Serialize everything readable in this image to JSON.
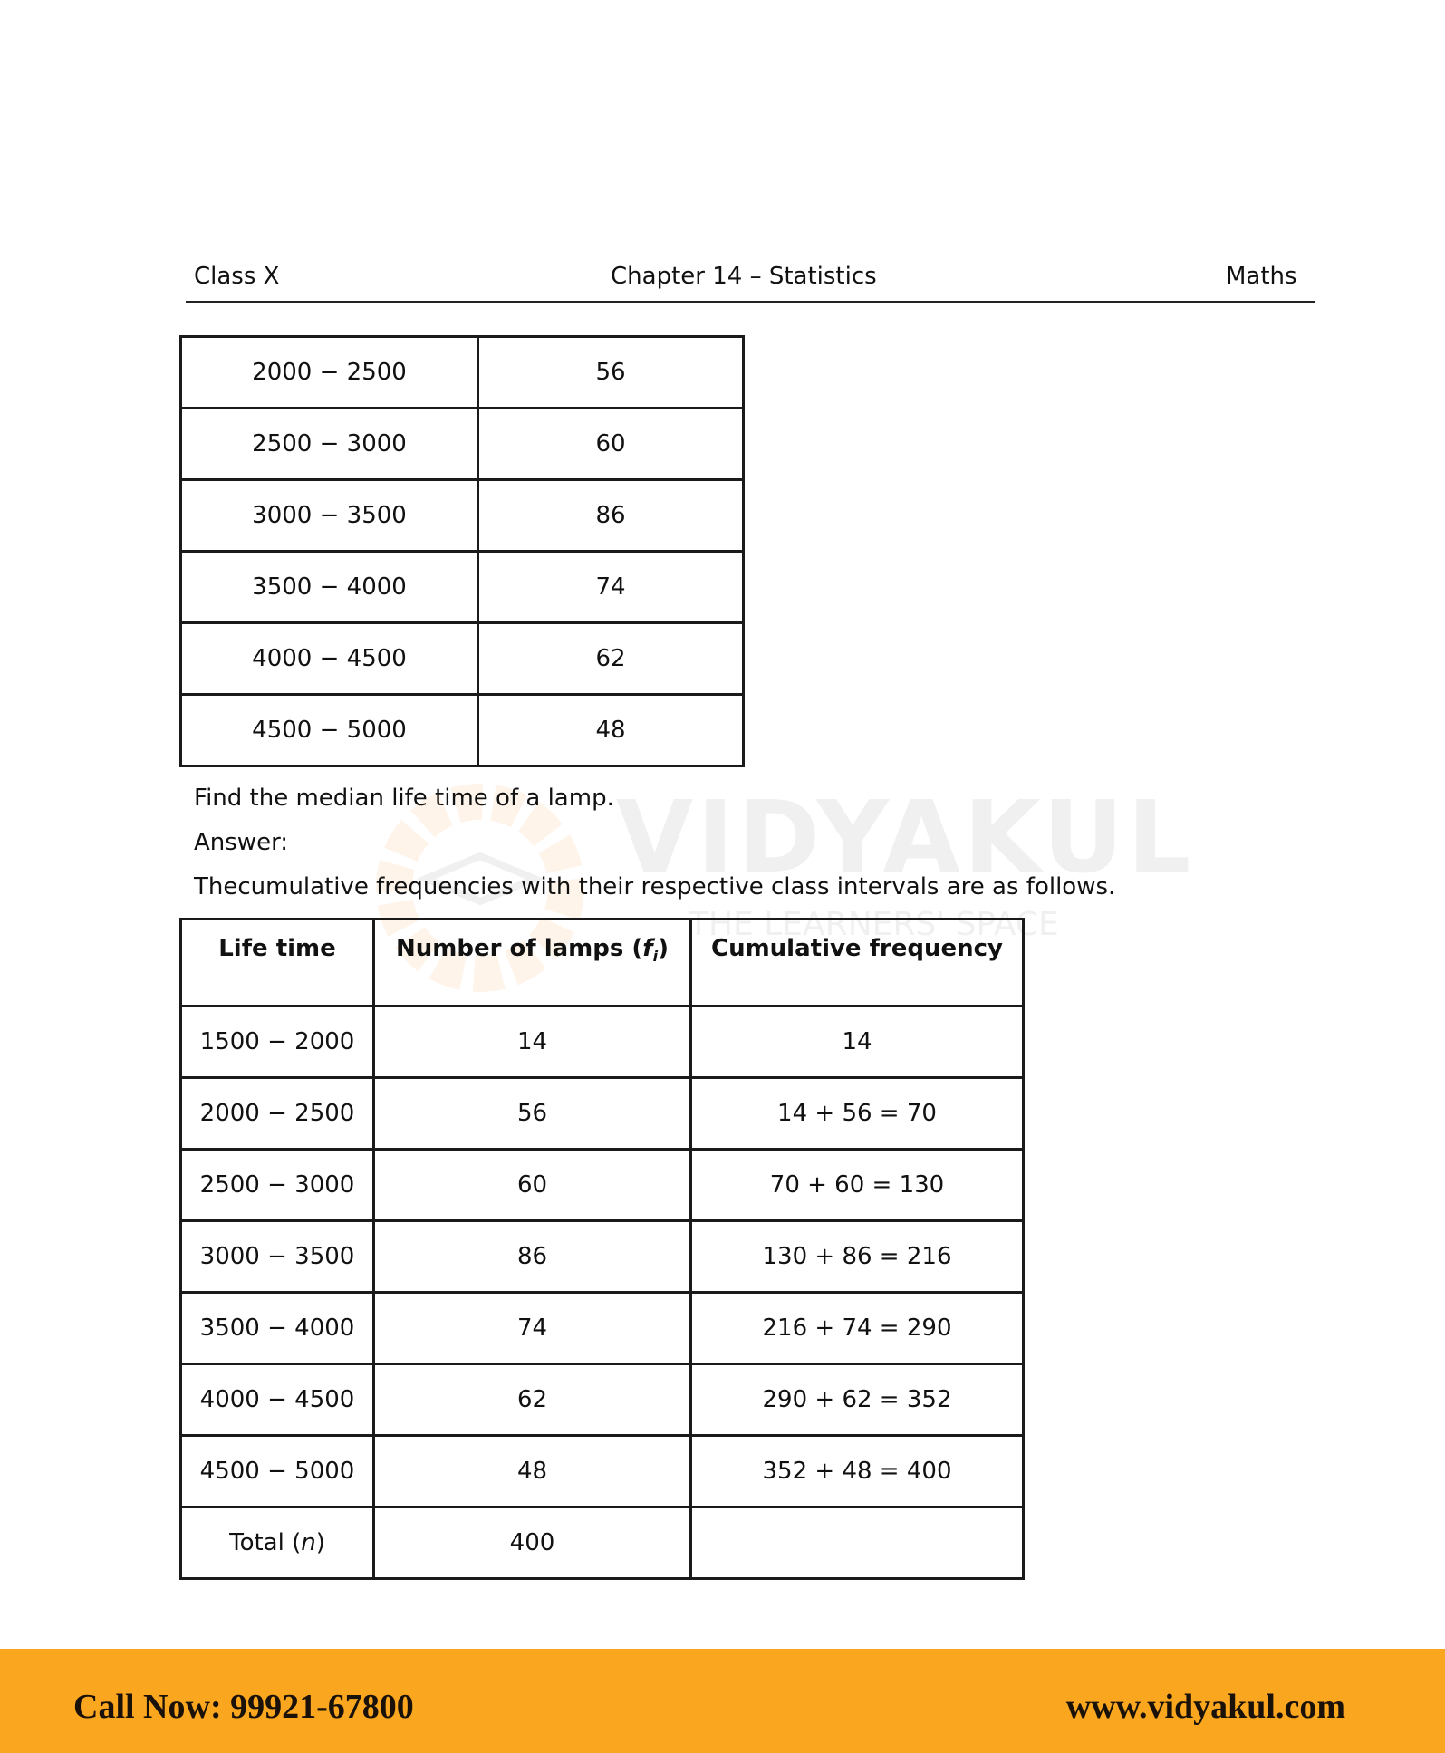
{
  "header": {
    "left": "Class X",
    "center": "Chapter 14 – Statistics",
    "right": "Maths"
  },
  "table1": {
    "rows": [
      [
        "2000 − 2500",
        "56"
      ],
      [
        "2500 − 3000",
        "60"
      ],
      [
        "3000 − 3500",
        "86"
      ],
      [
        "3500 − 4000",
        "74"
      ],
      [
        "4000 − 4500",
        "62"
      ],
      [
        "4500 − 5000",
        "48"
      ]
    ]
  },
  "question": "Find the median life time of a lamp.",
  "answer_label": "Answer:",
  "intro": "Thecumulative frequencies with their respective class intervals are as follows.",
  "table2": {
    "headers": [
      "Life time",
      "Number of lamps (",
      "f",
      "i",
      ")",
      "Cumulative frequency"
    ],
    "rows": [
      [
        "1500 − 2000",
        "14",
        "14"
      ],
      [
        "2000 − 2500",
        "56",
        "14 + 56 = 70"
      ],
      [
        "2500 − 3000",
        "60",
        "70 + 60 = 130"
      ],
      [
        "3000 − 3500",
        "86",
        "130 + 86 = 216"
      ],
      [
        "3500 − 4000",
        "74",
        "216 + 74 = 290"
      ],
      [
        "4000 − 4500",
        "62",
        "290 + 62 = 352"
      ],
      [
        "4500 − 5000",
        "48",
        "352 + 48 = 400"
      ]
    ],
    "total": {
      "label": "Total (",
      "n": "n",
      ")": ")",
      "value": "400",
      "cf": ""
    }
  },
  "watermark": {
    "name": "VIDYAKUL",
    "tagline": "THE LEARNERS' SPACE"
  },
  "footer": {
    "phone": "Call Now: 99921-67800",
    "website": "www.vidyakul.com",
    "color": "#fba61f"
  }
}
